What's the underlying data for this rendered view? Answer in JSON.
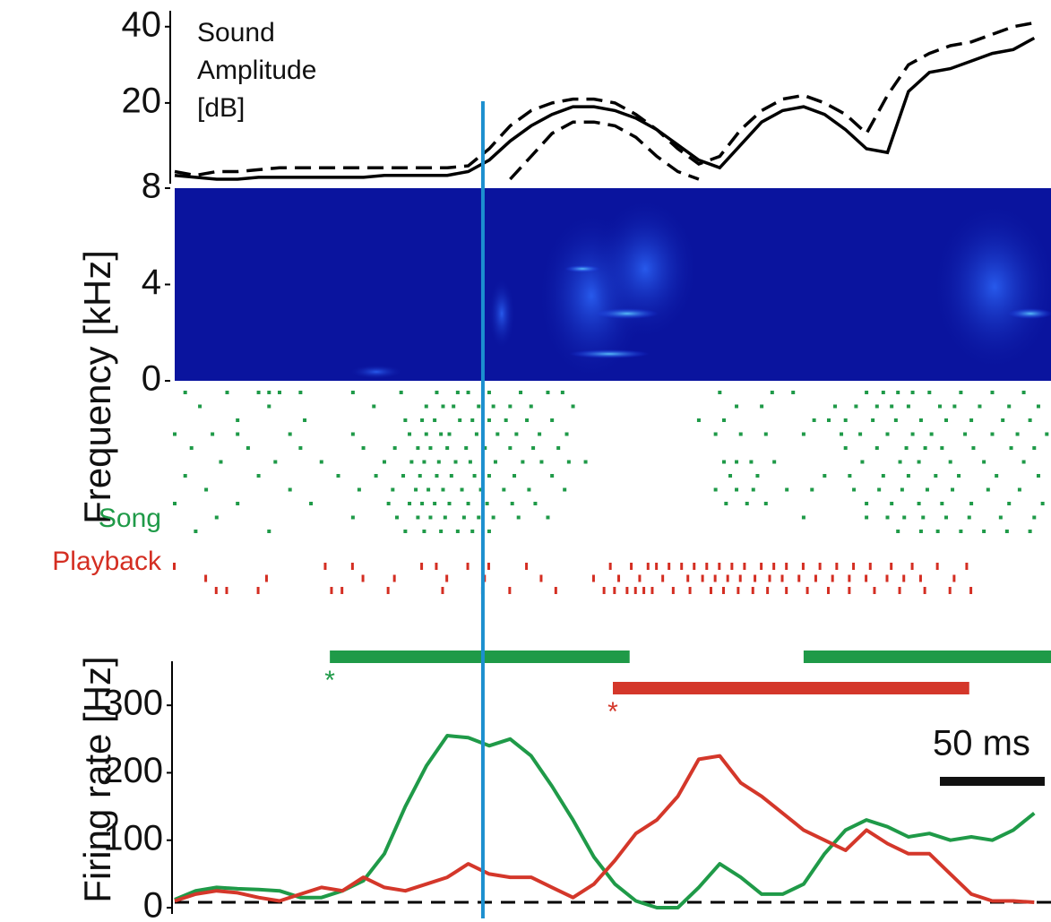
{
  "chart_data": [
    {
      "type": "line",
      "label_lines": [
        "Sound",
        "Amplitude",
        "[dB]"
      ],
      "xlim": [
        0,
        418
      ],
      "ylim": [
        0,
        43
      ],
      "yticks": [
        20,
        40
      ],
      "vline": 147,
      "vline_color": "#1c8fcf",
      "x": [
        0,
        10,
        20,
        30,
        40,
        50,
        60,
        70,
        80,
        90,
        100,
        110,
        120,
        130,
        140,
        150,
        160,
        170,
        180,
        190,
        200,
        210,
        220,
        230,
        240,
        250,
        260,
        270,
        280,
        290,
        300,
        310,
        320,
        330,
        340,
        350,
        360,
        370,
        380,
        390,
        400,
        410
      ],
      "series": [
        {
          "color": "#000000",
          "dashed": false,
          "values": [
            1,
            0.5,
            0,
            0,
            0.5,
            0.5,
            0.5,
            0.5,
            0.5,
            0.5,
            1,
            1,
            1,
            1,
            2,
            5,
            10,
            14,
            17,
            19,
            19,
            18,
            16,
            13,
            9,
            5,
            3,
            9,
            15,
            18,
            19,
            17,
            13,
            8,
            7,
            23,
            28,
            29,
            31,
            33,
            34,
            37
          ]
        },
        {
          "color": "#000000",
          "dashed": true,
          "values": [
            2,
            1,
            2,
            2,
            2.5,
            3,
            3,
            3,
            3,
            3,
            3,
            3,
            3,
            3,
            3.5,
            8,
            14,
            18,
            20,
            21,
            21,
            20,
            17,
            13,
            8,
            4,
            6,
            13,
            18,
            21,
            22,
            20,
            17,
            12,
            22,
            30,
            33,
            35,
            36,
            38,
            40,
            41
          ]
        },
        {
          "color": "#000000",
          "dashed": true,
          "values": [
            null,
            null,
            null,
            null,
            null,
            null,
            null,
            null,
            null,
            null,
            null,
            null,
            null,
            null,
            null,
            null,
            0,
            6,
            12,
            15,
            15,
            14,
            11,
            6,
            2,
            0,
            null,
            null,
            null,
            null,
            null,
            null,
            null,
            null,
            null,
            null,
            null,
            null,
            null,
            null,
            null,
            null
          ]
        }
      ]
    },
    {
      "type": "spectrogram",
      "ylabel": "Frequency [kHz]",
      "ylim": [
        0,
        8
      ],
      "yticks": [
        0,
        4,
        8
      ],
      "color": "#0a149e"
    },
    {
      "type": "raster",
      "xlim": [
        0,
        418
      ],
      "series": [
        {
          "name": "Song",
          "color": "#1f9a48",
          "trials": [
            [
              5,
              25,
              40,
              45,
              50,
              60,
              85,
              108,
              125,
              135,
              140,
              150,
              165,
              178,
              185,
              260,
              285,
              295,
              330,
              338,
              345,
              352,
              360,
              375,
              390,
              405
            ],
            [
              12,
              45,
              95,
              120,
              128,
              133,
              145,
              152,
              160,
              170,
              190,
              268,
              280,
              315,
              325,
              335,
              342,
              350,
              365,
              372,
              384,
              398,
              412
            ],
            [
              30,
              62,
              110,
              118,
              124,
              136,
              142,
              150,
              158,
              168,
              180,
              250,
              262,
              305,
              312,
              320,
              333,
              344,
              356,
              368,
              380,
              395,
              408
            ],
            [
              0,
              18,
              30,
              55,
              85,
              112,
              120,
              127,
              131,
              144,
              154,
              163,
              174,
              187,
              258,
              270,
              282,
              300,
              318,
              327,
              340,
              352,
              361,
              377,
              390,
              402,
              416
            ],
            [
              8,
              35,
              60,
              90,
              105,
              116,
              122,
              130,
              139,
              148,
              160,
              171,
              183,
              320,
              335,
              349,
              358,
              366,
              381,
              399,
              410
            ],
            [
              22,
              48,
              70,
              100,
              113,
              119,
              126,
              134,
              141,
              153,
              166,
              175,
              188,
              196,
              262,
              268,
              275,
              286,
              328,
              346,
              355,
              370,
              386,
              405
            ],
            [
              5,
              40,
              78,
              96,
              109,
              117,
              125,
              132,
              143,
              150,
              162,
              180,
              265,
              278,
              310,
              322,
              338,
              350,
              363,
              374,
              392,
              412
            ],
            [
              15,
              55,
              88,
              104,
              115,
              121,
              128,
              137,
              146,
              157,
              169,
              186,
              258,
              268,
              276,
              292,
              304,
              324,
              336,
              347,
              359,
              371,
              388,
              403
            ],
            [
              0,
              30,
              65,
              102,
              112,
              118,
              124,
              131,
              140,
              149,
              161,
              172,
              263,
              273,
              282,
              330,
              342,
              355,
              366,
              380,
              398,
              414
            ],
            [
              20,
              85,
              106,
              116,
              122,
              129,
              138,
              145,
              152,
              164,
              178,
              300,
              330,
              340,
              348,
              357,
              368,
              379,
              394,
              410
            ],
            [
              10,
              45,
              110,
              119,
              127,
              135,
              142,
              150,
              345,
              356,
              364,
              375,
              386,
              397,
              408
            ]
          ]
        },
        {
          "name": "Playback",
          "color": "#d42e22",
          "trials": [
            [
              0,
              72,
              85,
              118,
              125,
              140,
              150,
              168,
              208,
              218,
              226,
              230,
              236,
              242,
              248,
              254,
              260,
              266,
              272,
              280,
              286,
              292,
              300,
              308,
              316,
              324,
              332,
              342,
              352,
              364,
              378
            ],
            [
              15,
              44,
              90,
              105,
              130,
              148,
              175,
              200,
              212,
              222,
              233,
              245,
              252,
              258,
              264,
              270,
              277,
              284,
              290,
              298,
              306,
              314,
              322,
              330,
              340,
              348,
              356,
              372
            ],
            [
              20,
              25,
              40,
              75,
              80,
              102,
              128,
              147,
              160,
              182,
              205,
              210,
              216,
              220,
              224,
              228,
              238,
              246,
              256,
              262,
              269,
              276,
              283,
              292,
              302,
              312,
              322,
              334,
              346,
              358,
              370,
              380
            ]
          ]
        }
      ]
    },
    {
      "type": "line",
      "ylabel": "Firing rate [Hz]",
      "xlim": [
        0,
        418
      ],
      "ylim": [
        0,
        360
      ],
      "yticks": [
        0,
        100,
        200,
        300
      ],
      "baseline": 8,
      "scalebar": {
        "start": 365,
        "length": 50,
        "label": "50 ms"
      },
      "x": [
        0,
        10,
        20,
        30,
        40,
        50,
        60,
        70,
        80,
        90,
        100,
        110,
        120,
        130,
        140,
        150,
        160,
        170,
        180,
        190,
        200,
        210,
        220,
        230,
        240,
        250,
        260,
        270,
        280,
        290,
        300,
        310,
        320,
        330,
        340,
        350,
        360,
        370,
        380,
        390,
        400,
        410
      ],
      "series": [
        {
          "color": "#1f9a48",
          "values": [
            12,
            25,
            30,
            28,
            27,
            25,
            15,
            15,
            25,
            40,
            80,
            150,
            210,
            255,
            252,
            240,
            250,
            225,
            180,
            130,
            75,
            35,
            10,
            0,
            0,
            30,
            65,
            45,
            20,
            20,
            35,
            80,
            115,
            130,
            120,
            105,
            110,
            100,
            105,
            100,
            115,
            140
          ],
          "significant": [
            {
              "start": 74,
              "end": 217,
              "label": "*"
            },
            {
              "start": 300,
              "end": 418
            }
          ]
        },
        {
          "color": "#d4372a",
          "values": [
            10,
            20,
            25,
            22,
            15,
            10,
            20,
            30,
            25,
            45,
            30,
            25,
            35,
            45,
            65,
            50,
            45,
            45,
            30,
            15,
            35,
            70,
            110,
            130,
            165,
            220,
            225,
            185,
            165,
            140,
            115,
            100,
            85,
            115,
            95,
            80,
            80,
            50,
            20,
            10,
            10,
            8
          ],
          "significant": [
            {
              "start": 209,
              "end": 379,
              "label": "*"
            }
          ]
        }
      ]
    }
  ]
}
